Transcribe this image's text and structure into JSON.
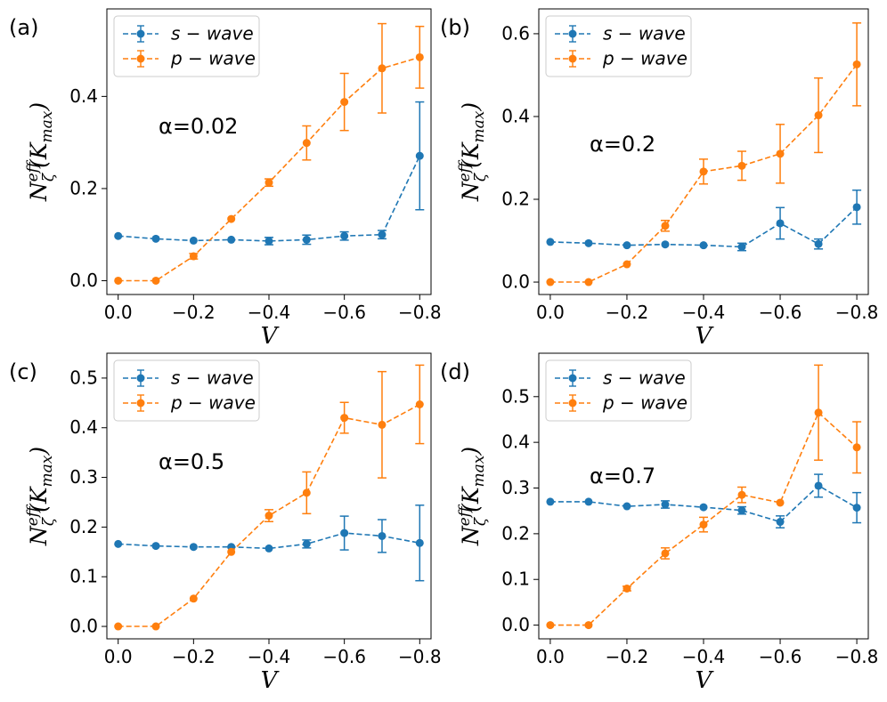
{
  "colors": {
    "s_wave": "#1f77b4",
    "p_wave": "#ff7f0e",
    "axis": "#000000",
    "legend_border": "#cccccc"
  },
  "chart_data": [
    {
      "type": "line",
      "panel_label": "(a)",
      "annotation": "α=0.02",
      "xlabel": "V",
      "ylabel": {
        "main": "N",
        "sup": "eff",
        "sub": "ζ",
        "arg_open": "(K",
        "arg_sub": "max",
        "arg_close": ")"
      },
      "x": [
        0.0,
        -0.1,
        -0.2,
        -0.3,
        -0.4,
        -0.5,
        -0.6,
        -0.7,
        -0.8
      ],
      "xticks": [
        0.0,
        -0.2,
        -0.4,
        -0.6,
        -0.8
      ],
      "xtick_labels": [
        "0.0",
        "−0.2",
        "−0.4",
        "−0.6",
        "−0.8"
      ],
      "xlim": [
        0.03,
        -0.83
      ],
      "ylim": [
        -0.03,
        0.59
      ],
      "yticks": [
        0.0,
        0.2,
        0.4
      ],
      "ytick_labels": [
        "0.0",
        "0.2",
        "0.4"
      ],
      "series": [
        {
          "name": "s − wave",
          "color_key": "s_wave",
          "values": [
            0.097,
            0.091,
            0.087,
            0.089,
            0.086,
            0.089,
            0.097,
            0.1,
            0.271
          ],
          "errors": [
            0.0,
            0.0,
            0.0,
            0.0,
            0.008,
            0.01,
            0.009,
            0.009,
            0.117
          ]
        },
        {
          "name": "p − wave",
          "color_key": "p_wave",
          "values": [
            0.0,
            0.0,
            0.053,
            0.134,
            0.213,
            0.299,
            0.388,
            0.461,
            0.485
          ],
          "errors": [
            0.0,
            0.0,
            0.006,
            0.0,
            0.008,
            0.037,
            0.062,
            0.097,
            0.067
          ]
        }
      ]
    },
    {
      "type": "line",
      "panel_label": "(b)",
      "annotation": "α=0.2",
      "xlabel": "V",
      "ylabel": {
        "main": "N",
        "sup": "eff",
        "sub": "ζ",
        "arg_open": "(K",
        "arg_sub": "max",
        "arg_close": ")"
      },
      "x": [
        0.0,
        -0.1,
        -0.2,
        -0.3,
        -0.4,
        -0.5,
        -0.6,
        -0.7,
        -0.8
      ],
      "xticks": [
        0.0,
        -0.2,
        -0.4,
        -0.6,
        -0.8
      ],
      "xtick_labels": [
        "0.0",
        "−0.2",
        "−0.4",
        "−0.6",
        "−0.8"
      ],
      "xlim": [
        0.03,
        -0.83
      ],
      "ylim": [
        -0.03,
        0.66
      ],
      "yticks": [
        0.0,
        0.2,
        0.4,
        0.6
      ],
      "ytick_labels": [
        "0.0",
        "0.2",
        "0.4",
        "0.6"
      ],
      "series": [
        {
          "name": "s − wave",
          "color_key": "s_wave",
          "values": [
            0.097,
            0.094,
            0.089,
            0.091,
            0.089,
            0.085,
            0.142,
            0.092,
            0.181
          ],
          "errors": [
            0.0,
            0.0,
            0.0,
            0.0,
            0.0,
            0.009,
            0.038,
            0.012,
            0.041
          ]
        },
        {
          "name": "p − wave",
          "color_key": "p_wave",
          "values": [
            0.0,
            0.0,
            0.043,
            0.136,
            0.267,
            0.281,
            0.31,
            0.403,
            0.526
          ],
          "errors": [
            0.0,
            0.0,
            0.0,
            0.013,
            0.03,
            0.035,
            0.071,
            0.09,
            0.1
          ]
        }
      ]
    },
    {
      "type": "line",
      "panel_label": "(c)",
      "annotation": "α=0.5",
      "xlabel": "V",
      "ylabel": {
        "main": "N",
        "sup": "eff",
        "sub": "ζ",
        "arg_open": "(K",
        "arg_sub": "max",
        "arg_close": ")"
      },
      "x": [
        0.0,
        -0.1,
        -0.2,
        -0.3,
        -0.4,
        -0.5,
        -0.6,
        -0.7,
        -0.8
      ],
      "xticks": [
        0.0,
        -0.2,
        -0.4,
        -0.6,
        -0.8
      ],
      "xtick_labels": [
        "0.0",
        "−0.2",
        "−0.4",
        "−0.6",
        "−0.8"
      ],
      "xlim": [
        0.03,
        -0.83
      ],
      "ylim": [
        -0.025,
        0.55
      ],
      "yticks": [
        0.0,
        0.1,
        0.2,
        0.3,
        0.4,
        0.5
      ],
      "ytick_labels": [
        "0.0",
        "0.1",
        "0.2",
        "0.3",
        "0.4",
        "0.5"
      ],
      "series": [
        {
          "name": "s − wave",
          "color_key": "s_wave",
          "values": [
            0.166,
            0.162,
            0.16,
            0.16,
            0.157,
            0.166,
            0.188,
            0.182,
            0.168
          ],
          "errors": [
            0.0,
            0.0,
            0.0,
            0.0,
            0.0,
            0.008,
            0.034,
            0.033,
            0.076
          ]
        },
        {
          "name": "p − wave",
          "color_key": "p_wave",
          "values": [
            0.0,
            0.0,
            0.056,
            0.15,
            0.223,
            0.269,
            0.42,
            0.406,
            0.447
          ],
          "errors": [
            0.0,
            0.0,
            0.0,
            0.0,
            0.012,
            0.042,
            0.031,
            0.107,
            0.079
          ]
        }
      ]
    },
    {
      "type": "line",
      "panel_label": "(d)",
      "annotation": "α=0.7",
      "xlabel": "V",
      "ylabel": {
        "main": "N",
        "sup": "eff",
        "sub": "ζ",
        "arg_open": "(K",
        "arg_sub": "max",
        "arg_close": ")"
      },
      "x": [
        0.0,
        -0.1,
        -0.2,
        -0.3,
        -0.4,
        -0.5,
        -0.6,
        -0.7,
        -0.8
      ],
      "xticks": [
        0.0,
        -0.2,
        -0.4,
        -0.6,
        -0.8
      ],
      "xtick_labels": [
        "0.0",
        "−0.2",
        "−0.4",
        "−0.6",
        "−0.8"
      ],
      "xlim": [
        0.03,
        -0.83
      ],
      "ylim": [
        -0.03,
        0.595
      ],
      "yticks": [
        0.0,
        0.1,
        0.2,
        0.3,
        0.4,
        0.5
      ],
      "ytick_labels": [
        "0.0",
        "0.1",
        "0.2",
        "0.3",
        "0.4",
        "0.5"
      ],
      "series": [
        {
          "name": "s − wave",
          "color_key": "s_wave",
          "values": [
            0.27,
            0.27,
            0.26,
            0.264,
            0.258,
            0.251,
            0.226,
            0.305,
            0.257
          ],
          "errors": [
            0.0,
            0.0,
            0.0,
            0.008,
            0.0,
            0.008,
            0.013,
            0.025,
            0.033
          ]
        },
        {
          "name": "p − wave",
          "color_key": "p_wave",
          "values": [
            0.0,
            0.0,
            0.08,
            0.157,
            0.22,
            0.285,
            0.268,
            0.465,
            0.389
          ],
          "errors": [
            0.0,
            0.0,
            0.005,
            0.012,
            0.016,
            0.017,
            0.0,
            0.104,
            0.056
          ]
        }
      ]
    }
  ]
}
